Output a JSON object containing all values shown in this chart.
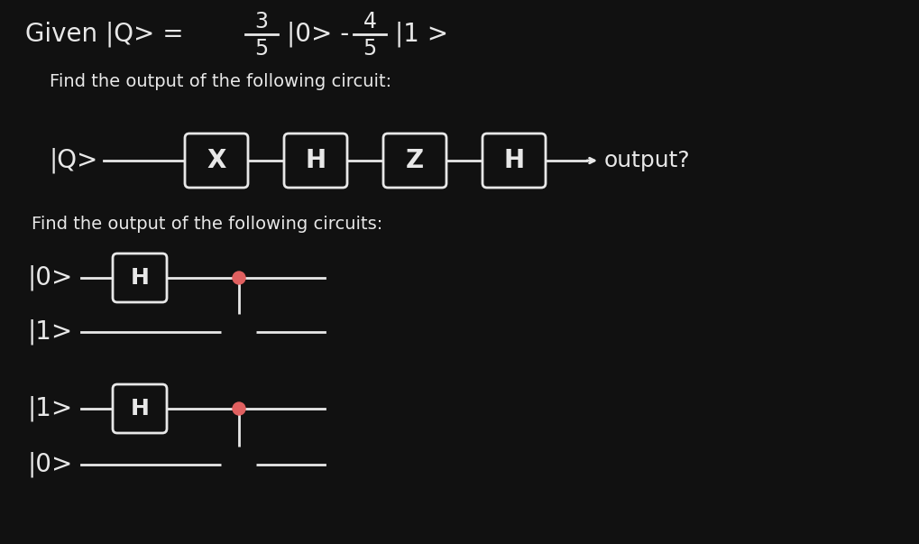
{
  "bg_color": "#111111",
  "text_color": "#e8e8e8",
  "gate_bg": "#111111",
  "gate_border": "#cccccc",
  "line_color": "#cccccc",
  "control_dot_color": "#e06060",
  "figsize": [
    10.2,
    6.03
  ],
  "dpi": 100,
  "eq_text": "Given |Q> =",
  "frac1_num": "3",
  "frac1_den": "5",
  "frac2_num": "4",
  "frac2_den": "5",
  "mid_text": "|0> -",
  "end_text": "|1 >",
  "circuit1_find": "Find the output of the following circuit:",
  "circuit1_input": "|Q>",
  "circuit1_gates": [
    "X",
    "H",
    "Z",
    "H"
  ],
  "circuit1_output_text": "output?",
  "circuit2_find": "Find the output of the following circuits:",
  "circ2_top_label": "|0>",
  "circ2_bot_label": "|1>",
  "circ3_top_label": "|1>",
  "circ3_bot_label": "|0>"
}
